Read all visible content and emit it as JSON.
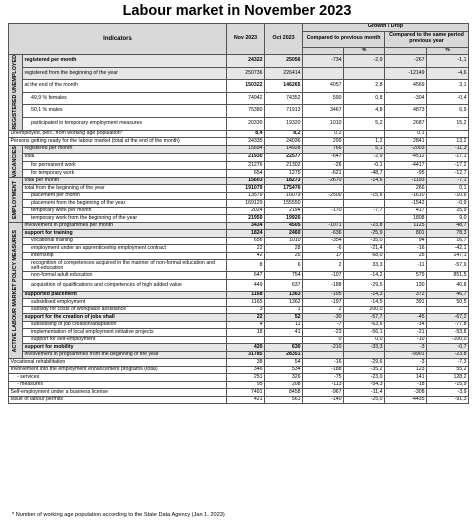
{
  "title": "Labour market in November 2023",
  "header": {
    "indicators": "Indicators",
    "nov": "Nov 2023",
    "oct": "Oct 2023",
    "growth": "Growth / Drop",
    "prev_month": "Compared to previous month",
    "prev_year": "Compared to the same period previous year",
    "unit_abs": "",
    "unit_pct": "%"
  },
  "sections": {
    "registered_unemployed": "REGISTERED UNEMPLOYED",
    "vacancies": "VACANCIES",
    "employment": "EMPLOYMENT",
    "almp": "ACTIVE LABOUR MARKET POLICY MEASURES"
  },
  "rows": [
    {
      "label": "registered per month",
      "nov": "24322",
      "oct": "25056",
      "m_abs": "-734",
      "m_pct": "-2,9",
      "y_abs": "-267",
      "y_pct": "-1,1"
    },
    {
      "label": "registered from the beginning of the year",
      "nov": "250736",
      "oct": "226414",
      "m_abs": "",
      "m_pct": "",
      "y_abs": "-12149",
      "y_pct": "-4,6"
    },
    {
      "label": "at the end of the month",
      "nov": "150322",
      "oct": "146265",
      "m_abs": "4057",
      "m_pct": "2,8",
      "y_abs": "4569",
      "y_pct": "3,1"
    },
    {
      "label": "49,9 % females",
      "nov": "74942",
      "oct": "74352",
      "m_abs": "590",
      "m_pct": "0,8",
      "y_abs": "-304",
      "y_pct": "-0,4"
    },
    {
      "label": "50,1 % males",
      "nov": "75380",
      "oct": "71913",
      "m_abs": "3467",
      "m_pct": "4,8",
      "y_abs": "4873",
      "y_pct": "6,9"
    },
    {
      "label": "participated in temporary employment measures",
      "nov": "20330",
      "oct": "19320",
      "m_abs": "1010",
      "m_pct": "5,2",
      "y_abs": "2687",
      "y_pct": "15,2"
    },
    {
      "label": "Unemployed, perc. from working age population*",
      "nov": "8,4",
      "oct": "8,2",
      "m_abs": "0,2",
      "m_pct": "",
      "y_abs": "0,1",
      "y_pct": ""
    },
    {
      "label": "Persons getting ready for the labour market (total at the end of the month)",
      "nov": "24335",
      "oct": "24036",
      "m_abs": "299",
      "m_pct": "1,2",
      "y_abs": "2841",
      "y_pct": "13,2"
    },
    {
      "label": "registered per month",
      "nov": "15694",
      "oct": "14928",
      "m_abs": "766",
      "m_pct": "5,1",
      "y_abs": "-2003",
      "y_pct": "-11,3"
    },
    {
      "label": "total",
      "nov": "21930",
      "oct": "22577",
      "m_abs": "-647",
      "m_pct": "-2,9",
      "y_abs": "-4512",
      "y_pct": "-17,1"
    },
    {
      "label": "for permanent work",
      "nov": "21276",
      "oct": "21302",
      "m_abs": "-26",
      "m_pct": "-0,1",
      "y_abs": "-4417",
      "y_pct": "-17,2"
    },
    {
      "label": "for temporary work",
      "nov": "654",
      "oct": "1275",
      "m_abs": "-621",
      "m_pct": "-48,7",
      "y_abs": "-95",
      "y_pct": "-12,7"
    },
    {
      "label": "total per month",
      "nov": "15603",
      "oct": "18273",
      "m_abs": "-2670",
      "m_pct": "-14,6",
      "y_abs": "-1193",
      "y_pct": "-7,1"
    },
    {
      "label": "total from the beginning of the year",
      "nov": "191079",
      "oct": "175476",
      "m_abs": "",
      "m_pct": "",
      "y_abs": "266",
      "y_pct": "0,1"
    },
    {
      "label": "placement per month",
      "nov": "13579",
      "oct": "16079",
      "m_abs": "-2500",
      "m_pct": "-15,6",
      "y_abs": "-1610",
      "y_pct": "-10,6"
    },
    {
      "label": "placement from the beginning of the year",
      "nov": "169129",
      "oct": "155550",
      "m_abs": "",
      "m_pct": "",
      "y_abs": "-1542",
      "y_pct": "-0,9"
    },
    {
      "label": "temporary work per month",
      "nov": "2024",
      "oct": "2194",
      "m_abs": "-170",
      "m_pct": "-7,7",
      "y_abs": "417",
      "y_pct": "25,9"
    },
    {
      "label": "temporary work from the beginning of the year",
      "nov": "21950",
      "oct": "19926",
      "m_abs": "",
      "m_pct": "",
      "y_abs": "1808",
      "y_pct": "9,0"
    },
    {
      "label": "involvement in programmes per month",
      "nov": "3434",
      "oct": "4505",
      "m_abs": "-1071",
      "m_pct": "-23,8",
      "y_abs": "1125",
      "y_pct": "48,7"
    },
    {
      "label": "support for training",
      "nov": "1824",
      "oct": "2460",
      "m_abs": "-636",
      "m_pct": "-25,9",
      "y_abs": "801",
      "y_pct": "78,3"
    },
    {
      "label": "vocational training",
      "nov": "656",
      "oct": "1010",
      "m_abs": "-354",
      "m_pct": "-35,0",
      "y_abs": "94",
      "y_pct": "16,7"
    },
    {
      "label": "employment under an apprenticeship employment contract",
      "nov": "22",
      "oct": "28",
      "m_abs": "-6",
      "m_pct": "-21,4",
      "y_abs": "-16",
      "y_pct": "-42,1"
    },
    {
      "label": "internship",
      "nov": "42",
      "oct": "25",
      "m_abs": "17",
      "m_pct": "68,0",
      "y_abs": "25",
      "y_pct": "147,1"
    },
    {
      "label": "recognition of competences acquired in the manner of non-formal education and self-education",
      "nov": "8",
      "oct": "6",
      "m_abs": "2",
      "m_pct": "33,3",
      "y_abs": "-11",
      "y_pct": "-57,9"
    },
    {
      "label": "non-formal adult education",
      "nov": "647",
      "oct": "754",
      "m_abs": "-107",
      "m_pct": "-14,2",
      "y_abs": "579",
      "y_pct": "851,5"
    },
    {
      "label": "acquisition of qualifications and competences of high added value",
      "nov": "449",
      "oct": "637",
      "m_abs": "-188",
      "m_pct": "-29,5",
      "y_abs": "130",
      "y_pct": "40,8"
    },
    {
      "label": "supported placement",
      "nov": "1168",
      "oct": "1363",
      "m_abs": "-195",
      "m_pct": "-14,3",
      "y_abs": "372",
      "y_pct": "46,7"
    },
    {
      "label": "subsidised employment",
      "nov": "1165",
      "oct": "1362",
      "m_abs": "-197",
      "m_pct": "-14,5",
      "y_abs": "391",
      "y_pct": "50,5"
    },
    {
      "label": "subsidy for costs of workplace assistance",
      "nov": "3",
      "oct": "1",
      "m_abs": "2",
      "m_pct": "200,0",
      "y_abs": "",
      "y_pct": ""
    },
    {
      "label": "support for the creation of jobs shall",
      "nov": "22",
      "oct": "52",
      "m_abs": "-30",
      "m_pct": "-57,7",
      "y_abs": "-45",
      "y_pct": "-67,2"
    },
    {
      "label": "subsidising of job creation/adaptation",
      "nov": "4",
      "oct": "11",
      "m_abs": "-7",
      "m_pct": "-63,6",
      "y_abs": "-14",
      "y_pct": "-77,8"
    },
    {
      "label": "implementation of local employment initiative projects",
      "nov": "18",
      "oct": "41",
      "m_abs": "-23",
      "m_pct": "-56,1",
      "y_abs": "-21",
      "y_pct": "-53,8"
    },
    {
      "label": "support for self-employment",
      "nov": "",
      "oct": "",
      "m_abs": "0",
      "m_pct": "0,0",
      "y_abs": "-10",
      "y_pct": "-100,0"
    },
    {
      "label": "support for mobility",
      "nov": "420",
      "oct": "630",
      "m_abs": "-210",
      "m_pct": "-33,3",
      "y_abs": "-3",
      "y_pct": "-0,7"
    },
    {
      "label": "involvement in programmes from the beginning of the year",
      "nov": "31785",
      "oct": "28351",
      "m_abs": "",
      "m_pct": "",
      "y_abs": "-9901",
      "y_pct": "-23,8"
    },
    {
      "label": "Vocational rehabilitation",
      "nov": "38",
      "oct": "54",
      "m_abs": "-16",
      "m_pct": "-29,6",
      "y_abs": "-3",
      "y_pct": "-7,3"
    },
    {
      "label": "Involvement into the employment enhancement programs (total)",
      "nov": "346",
      "oct": "534",
      "m_abs": "-188",
      "m_pct": "-35,2",
      "y_abs": "123",
      "y_pct": "55,2"
    },
    {
      "label": "- services",
      "nov": "251",
      "oct": "326",
      "m_abs": "-75",
      "m_pct": "-23,0",
      "y_abs": "141",
      "y_pct": "128,2"
    },
    {
      "label": "- measures",
      "nov": "95",
      "oct": "208",
      "m_abs": "-113",
      "m_pct": "-54,3",
      "y_abs": "-18",
      "y_pct": "-15,9"
    },
    {
      "label": "Self-employment under a business license",
      "nov": "7491",
      "oct": "8458",
      "m_abs": "-967",
      "m_pct": "-11,4",
      "y_abs": "-308",
      "y_pct": "-3,9"
    },
    {
      "label": "Issue of labour permits",
      "nov": "421",
      "oct": "561",
      "m_abs": "-140",
      "m_pct": "-25,0",
      "y_abs": "-4435",
      "y_pct": "-91,3"
    }
  ],
  "footnote": "*  Number of working age population according to the State Data Agency (Jan 1, 2023)"
}
